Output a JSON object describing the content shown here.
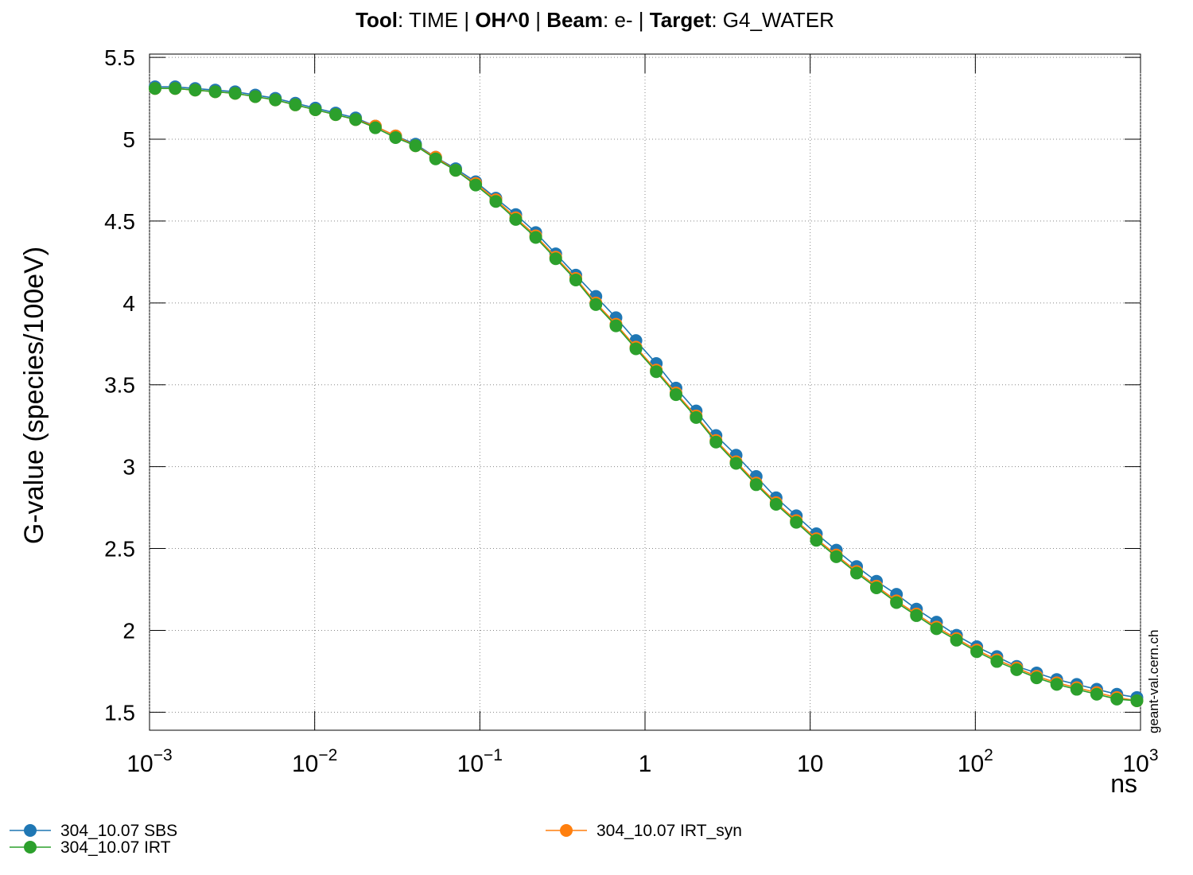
{
  "chart_data": {
    "type": "line",
    "title": [
      {
        "text": "Tool",
        "bold": true
      },
      {
        "text": ": TIME | ",
        "bold": false
      },
      {
        "text": "OH^0",
        "bold": true
      },
      {
        "text": " | ",
        "bold": false
      },
      {
        "text": "Beam",
        "bold": true
      },
      {
        "text": ": e- | ",
        "bold": false
      },
      {
        "text": "Target",
        "bold": true
      },
      {
        "text": ": G4_WATER",
        "bold": false
      }
    ],
    "x_label": "ns",
    "y_label": "G-value (species/100eV)",
    "watermark": "geant-val.cern.ch",
    "log_x": true,
    "grid": true,
    "legend": "bottom",
    "xlim": [
      0.001,
      1000
    ],
    "xticks": [
      {
        "value": 0.001,
        "label": "10",
        "exponent": "−3"
      },
      {
        "value": 0.01,
        "label": "10",
        "exponent": "−2"
      },
      {
        "value": 0.1,
        "label": "10",
        "exponent": "−1"
      },
      1,
      10,
      {
        "value": 100,
        "label": "10",
        "exponent": "2"
      },
      {
        "value": 1000,
        "label": "10",
        "exponent": "3"
      }
    ],
    "ylim": [
      1.39,
      5.52
    ],
    "yticks": [
      1.5,
      2,
      2.5,
      3,
      3.5,
      4,
      4.5,
      5,
      5.5
    ],
    "x": [
      0.00108,
      0.00143,
      0.00189,
      0.0025,
      0.0033,
      0.00437,
      0.00578,
      0.00764,
      0.0101,
      0.0134,
      0.0177,
      0.0233,
      0.0309,
      0.0408,
      0.054,
      0.0714,
      0.0944,
      0.125,
      0.165,
      0.218,
      0.288,
      0.381,
      0.504,
      0.667,
      0.881,
      1.17,
      1.54,
      2.04,
      2.69,
      3.56,
      4.71,
      6.22,
      8.24,
      10.9,
      14.4,
      19.1,
      25.2,
      33.3,
      44.0,
      58.2,
      76.9,
      102,
      135,
      178,
      235,
      311,
      411,
      543,
      719,
      951
    ],
    "series": [
      {
        "name": "304_10.07 SBS",
        "color": "#1f77b4",
        "values": [
          5.32,
          5.32,
          5.31,
          5.3,
          5.29,
          5.27,
          5.25,
          5.22,
          5.19,
          5.16,
          5.13,
          5.08,
          5.02,
          4.97,
          4.89,
          4.82,
          4.74,
          4.64,
          4.54,
          4.43,
          4.3,
          4.17,
          4.04,
          3.91,
          3.77,
          3.63,
          3.48,
          3.34,
          3.19,
          3.07,
          2.94,
          2.81,
          2.7,
          2.59,
          2.49,
          2.39,
          2.3,
          2.22,
          2.13,
          2.05,
          1.97,
          1.9,
          1.84,
          1.78,
          1.74,
          1.7,
          1.67,
          1.64,
          1.61,
          1.59
        ]
      },
      {
        "name": "304_10.07 IRT_syn",
        "color": "#ff7f0e",
        "values": [
          5.31,
          5.31,
          5.3,
          5.29,
          5.28,
          5.26,
          5.24,
          5.21,
          5.18,
          5.15,
          5.12,
          5.08,
          5.02,
          4.96,
          4.89,
          4.81,
          4.73,
          4.63,
          4.52,
          4.41,
          4.28,
          4.15,
          4.0,
          3.87,
          3.73,
          3.59,
          3.45,
          3.31,
          3.16,
          3.03,
          2.9,
          2.78,
          2.67,
          2.56,
          2.46,
          2.36,
          2.27,
          2.18,
          2.1,
          2.02,
          1.95,
          1.88,
          1.82,
          1.77,
          1.72,
          1.68,
          1.65,
          1.62,
          1.59,
          1.57
        ]
      },
      {
        "name": "304_10.07 IRT",
        "color": "#2ca02c",
        "values": [
          5.31,
          5.31,
          5.3,
          5.29,
          5.28,
          5.26,
          5.24,
          5.21,
          5.18,
          5.15,
          5.12,
          5.07,
          5.01,
          4.96,
          4.88,
          4.81,
          4.72,
          4.62,
          4.51,
          4.4,
          4.27,
          4.14,
          3.99,
          3.86,
          3.72,
          3.58,
          3.44,
          3.3,
          3.15,
          3.02,
          2.89,
          2.77,
          2.66,
          2.55,
          2.45,
          2.35,
          2.26,
          2.17,
          2.09,
          2.01,
          1.94,
          1.87,
          1.81,
          1.76,
          1.71,
          1.67,
          1.64,
          1.61,
          1.58,
          1.57
        ]
      }
    ]
  }
}
